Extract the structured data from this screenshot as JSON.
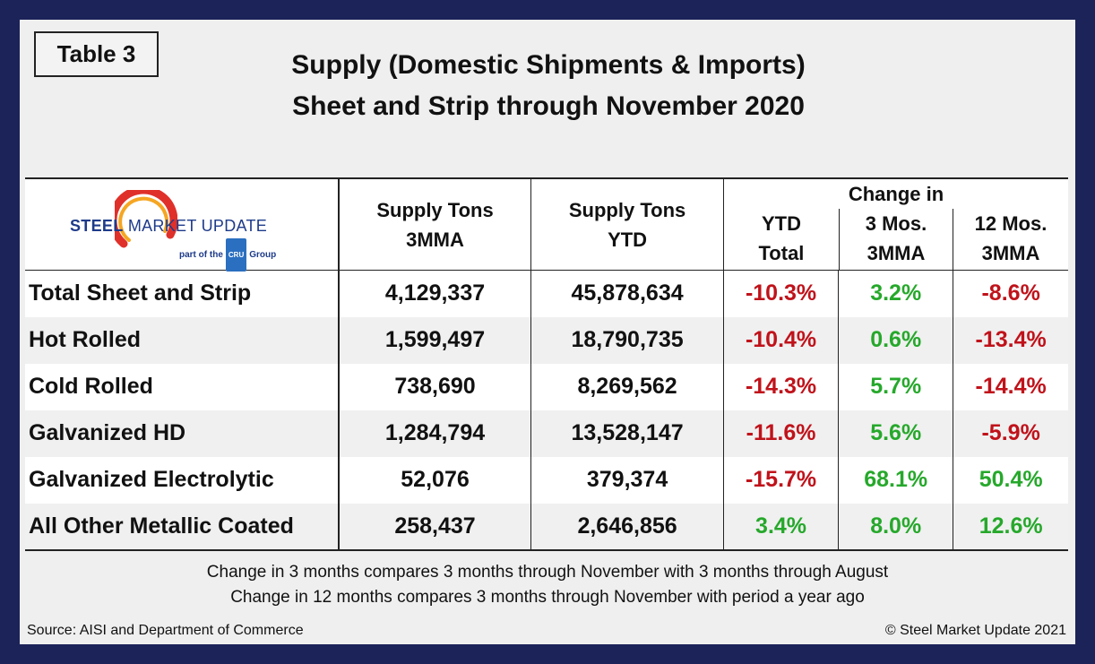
{
  "badge": "Table 3",
  "title": {
    "line1": "Supply (Domestic Shipments & Imports)",
    "line2": "Sheet and Strip through November 2020"
  },
  "logo": {
    "bold": "STEEL",
    "light": " MARKET UPDATE",
    "sub_prefix": "part of the",
    "sub_badge": "CRU",
    "sub_suffix": "Group",
    "colors": {
      "swoosh_outer": "#e0302a",
      "swoosh_inner": "#f5a623",
      "text": "#1e3b8a"
    }
  },
  "headers": {
    "supply_3mma": [
      "Supply Tons",
      "3MMA"
    ],
    "supply_ytd": [
      "Supply Tons",
      "YTD"
    ],
    "change_in": "Change in",
    "ytd_total": [
      "YTD",
      "Total"
    ],
    "three_mos": [
      "3 Mos.",
      "3MMA"
    ],
    "twelve_mos": [
      "12 Mos.",
      "3MMA"
    ]
  },
  "rows": [
    {
      "label": "Total Sheet and Strip",
      "s3": "4,129,337",
      "sytd": "45,878,634",
      "ytd": "-10.3%",
      "m3": "3.2%",
      "m12": "-8.6%"
    },
    {
      "label": "Hot Rolled",
      "s3": "1,599,497",
      "sytd": "18,790,735",
      "ytd": "-10.4%",
      "m3": "0.6%",
      "m12": "-13.4%"
    },
    {
      "label": "Cold Rolled",
      "s3": "738,690",
      "sytd": "8,269,562",
      "ytd": "-14.3%",
      "m3": "5.7%",
      "m12": "-14.4%"
    },
    {
      "label": "Galvanized HD",
      "s3": "1,284,794",
      "sytd": "13,528,147",
      "ytd": "-11.6%",
      "m3": "5.6%",
      "m12": "-5.9%"
    },
    {
      "label": "Galvanized Electrolytic",
      "s3": "52,076",
      "sytd": "379,374",
      "ytd": "-15.7%",
      "m3": "68.1%",
      "m12": "50.4%"
    },
    {
      "label": "All Other Metallic Coated",
      "s3": "258,437",
      "sytd": "2,646,856",
      "ytd": "3.4%",
      "m3": "8.0%",
      "m12": "12.6%"
    }
  ],
  "notes": [
    "Change in 3 months compares 3 months through November with 3 months through August",
    "Change in 12 months compares 3 months through November with period a year ago"
  ],
  "source": "Source: AISI and Department of Commerce",
  "copyright": "© Steel Market Update 2021",
  "colors": {
    "frame": "#1b2358",
    "negative": "#c0121a",
    "positive": "#26a82b"
  }
}
